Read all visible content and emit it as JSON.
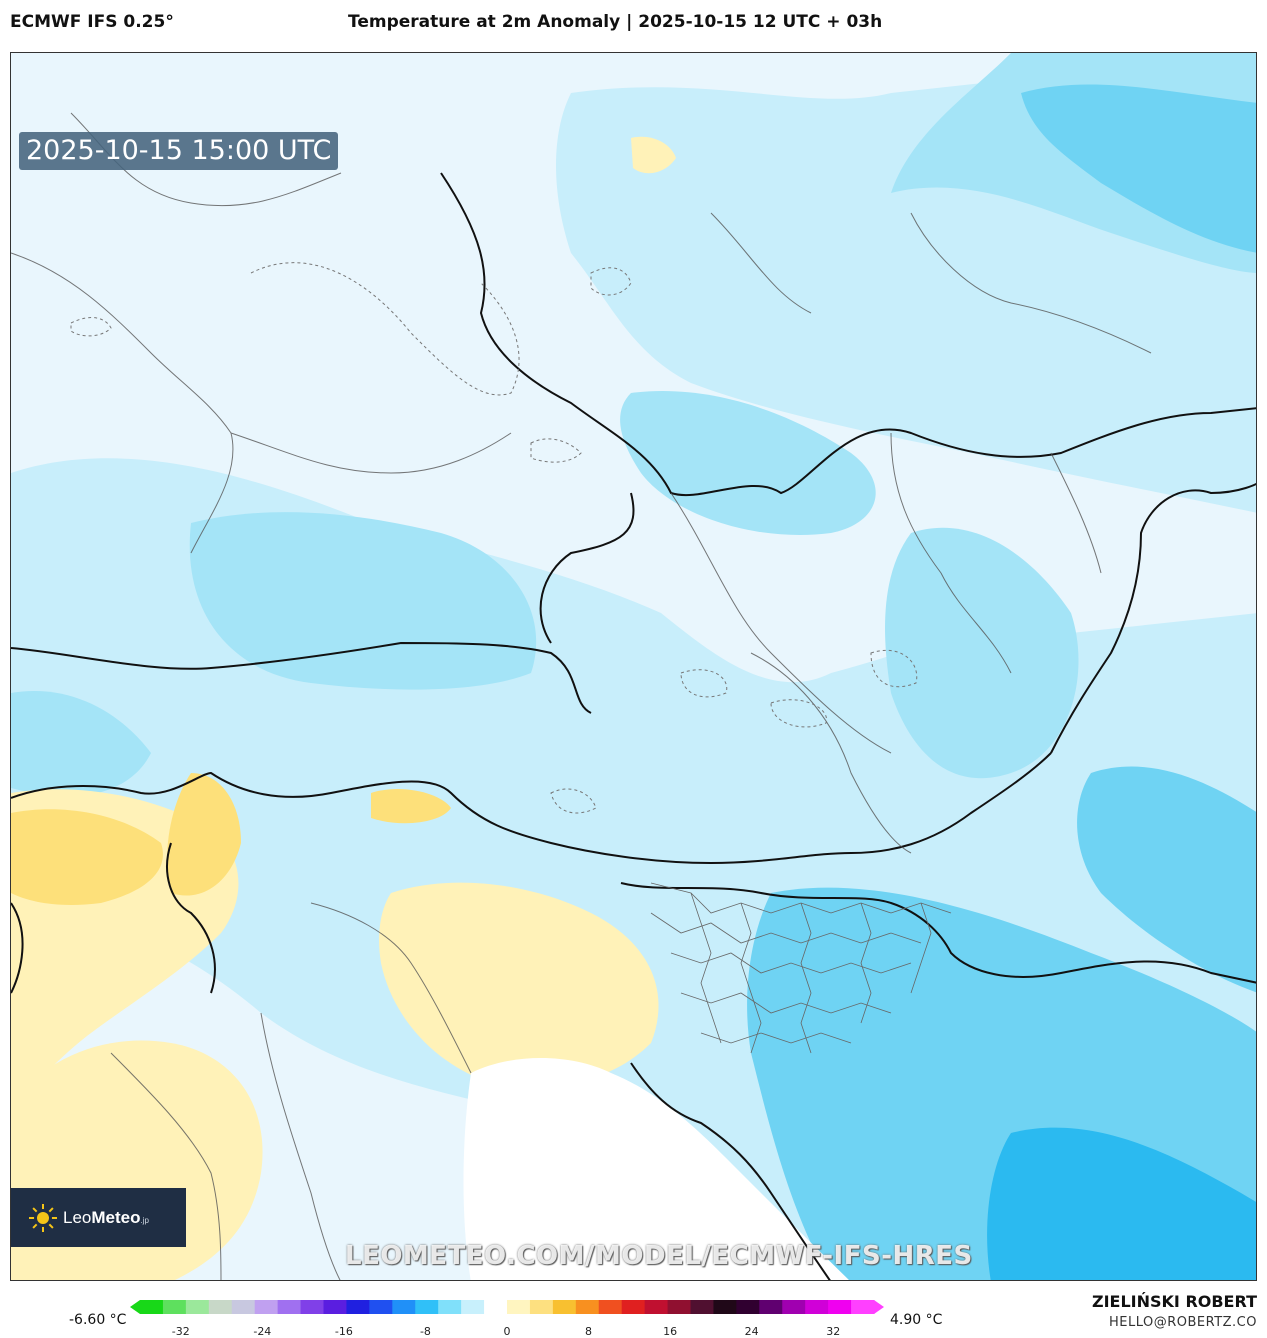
{
  "header": {
    "model": "ECMWF IFS 0.25°",
    "title": "Temperature at 2m Anomaly | 2025-10-15 12 UTC + 03h"
  },
  "map": {
    "timestamp": "2025-10-15 15:00 UTC",
    "watermark": "LEOMETEO.COM/MODEL/ECMWF-IFS-HRES",
    "logo": {
      "brand_prefix": "Leo",
      "brand_suffix": "Meteo",
      "brand_tld": ".jp"
    },
    "colors": {
      "ocean": "#ffffff",
      "anomaly_neutral": "#e9f6fd",
      "anomaly_cold_1": "#c8eefb",
      "anomaly_cold_2": "#a4e4f7",
      "anomaly_cold_3": "#6fd3f3",
      "anomaly_cold_4": "#2bbaf0",
      "anomaly_warm_1": "#fff2b8",
      "anomaly_warm_2": "#fde07a",
      "anomaly_warm_3": "#f4c430"
    }
  },
  "legend": {
    "min_label": "-6.60 °C",
    "max_label": "4.90 °C",
    "ticks": [
      "-32",
      "-24",
      "-16",
      "-8",
      "0",
      "8",
      "16",
      "24",
      "32"
    ],
    "scale_min": -36,
    "scale_max": 36,
    "colors": [
      "#18d818",
      "#5ee05e",
      "#9be89b",
      "#c8d8c8",
      "#c8c8e0",
      "#c0a0f0",
      "#a070f0",
      "#8040e8",
      "#5a1ee0",
      "#2020e0",
      "#2050f0",
      "#2090f8",
      "#30c0f8",
      "#80e0fa",
      "#c8f0fc",
      "#ffffff",
      "#fff5c0",
      "#fde080",
      "#f8c030",
      "#f89020",
      "#f05020",
      "#e02020",
      "#c01030",
      "#901030",
      "#501030",
      "#200818",
      "#300030",
      "#600070",
      "#a000b0",
      "#d000d8",
      "#f000f0",
      "#ff40ff"
    ]
  },
  "credits": {
    "author": "ZIELIŃSKI ROBERT",
    "email": "HELLO@ROBERTZ.CO"
  }
}
